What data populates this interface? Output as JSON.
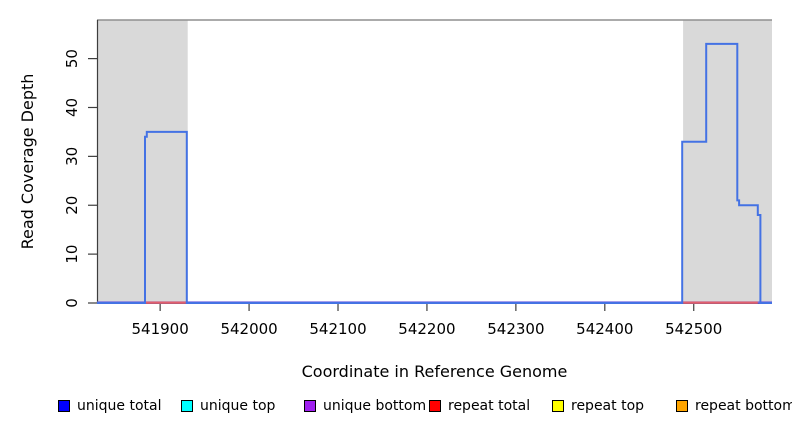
{
  "chart_data": {
    "type": "line",
    "subtype": "step-coverage",
    "title": "",
    "xlabel": "Coordinate in Reference Genome",
    "ylabel": "Read Coverage Depth",
    "xlim": [
      541829,
      542588
    ],
    "ylim": [
      0,
      57.9
    ],
    "x_ticks": [
      541900,
      542000,
      542100,
      542200,
      542300,
      542400,
      542500
    ],
    "y_ticks": [
      0,
      10,
      20,
      30,
      40,
      50
    ],
    "grid": false,
    "top_boundary_value": 57.9,
    "repeat_regions_shaded": [
      [
        541830,
        541931
      ],
      [
        542488,
        542588
      ]
    ],
    "series": [
      {
        "name": "unique total",
        "style": "step",
        "color": "#4472e4",
        "points": [
          [
            541829,
            0
          ],
          [
            541883,
            0
          ],
          [
            541883,
            34
          ],
          [
            541885,
            34
          ],
          [
            541885,
            35
          ],
          [
            541930,
            35
          ],
          [
            541930,
            0
          ],
          [
            542487,
            0
          ],
          [
            542487,
            33
          ],
          [
            542514,
            33
          ],
          [
            542514,
            53
          ],
          [
            542549,
            53
          ],
          [
            542549,
            21
          ],
          [
            542551,
            21
          ],
          [
            542551,
            20
          ],
          [
            542572,
            20
          ],
          [
            542572,
            18
          ],
          [
            542575,
            18
          ],
          [
            542575,
            0
          ],
          [
            542588,
            0
          ]
        ]
      },
      {
        "name": "unique bottom (baseline at zero)",
        "style": "flat-baseline",
        "color": "#7064e0",
        "points": [
          [
            541829,
            0
          ],
          [
            542588,
            0
          ]
        ]
      },
      {
        "name": "repeat total (baseline at zero inside repeat regions)",
        "style": "baseline-segments",
        "color": "#e25f6d",
        "segments": [
          [
            541883,
            541930
          ],
          [
            542487,
            542572
          ]
        ]
      }
    ]
  },
  "axes": {
    "x_tick_labels": [
      "541900",
      "542000",
      "542100",
      "542200",
      "542300",
      "542400",
      "542500"
    ],
    "y_tick_labels": [
      "0",
      "10",
      "20",
      "30",
      "40",
      "50"
    ]
  },
  "legend": {
    "items": [
      {
        "label": "unique total",
        "color": "#0000ff"
      },
      {
        "label": "unique top",
        "color": "#00ffff"
      },
      {
        "label": "unique bottom",
        "color": "#a020f0"
      },
      {
        "label": "repeat total",
        "color": "#ff0000"
      },
      {
        "label": "repeat top",
        "color": "#ffff00"
      },
      {
        "label": "repeat bottom",
        "color": "#ffa500"
      }
    ]
  },
  "colors": {
    "region_fill": "#d9d9d9",
    "top_boundary_line": "#8f8f8f",
    "axis_line": "#3d3d3d",
    "coverage_line": "#4472e4",
    "baseline_purple": "#7064e0",
    "baseline_red": "#e25f6d"
  }
}
